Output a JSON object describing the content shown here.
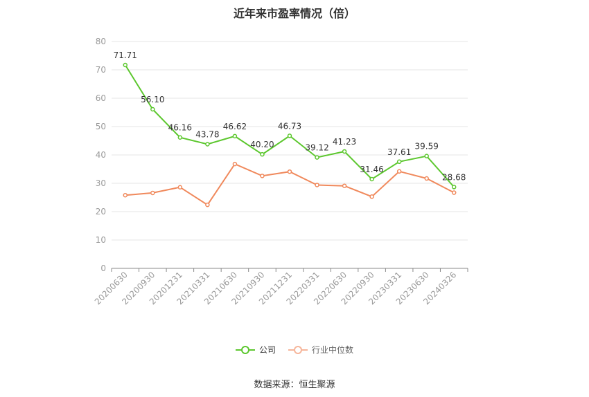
{
  "chart_data": {
    "type": "line",
    "title": "近年来市盈率情况（倍）",
    "categories": [
      "20200630",
      "20200930",
      "20201231",
      "20210331",
      "20210630",
      "20210930",
      "20211231",
      "20220331",
      "20220630",
      "20220930",
      "20230331",
      "20230630",
      "20240326"
    ],
    "series": [
      {
        "name": "公司",
        "values": [
          71.71,
          56.1,
          46.16,
          43.78,
          46.62,
          40.2,
          46.73,
          39.12,
          41.23,
          31.46,
          37.61,
          39.59,
          28.68
        ],
        "labels": [
          "71.71",
          "56.10",
          "46.16",
          "43.78",
          "46.62",
          "40.20",
          "46.73",
          "39.12",
          "41.23",
          "31.46",
          "37.61",
          "39.59",
          "28.68"
        ],
        "color": "#5cc72e"
      },
      {
        "name": "行业中位数",
        "values": [
          25.8,
          26.6,
          28.6,
          22.4,
          36.8,
          32.6,
          34.1,
          29.4,
          29.1,
          25.3,
          34.2,
          31.7,
          26.7
        ],
        "color": "#f0895c"
      }
    ],
    "ylim": [
      0,
      80
    ],
    "yticks": [
      0,
      10,
      20,
      30,
      40,
      50,
      60,
      70,
      80
    ],
    "grid": true,
    "legend_position": "bottom-center",
    "source": "数据来源：恒生聚源"
  }
}
